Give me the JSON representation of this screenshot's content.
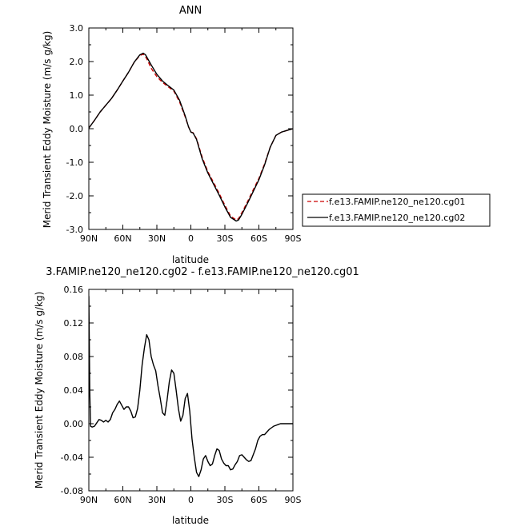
{
  "chart_data": [
    {
      "type": "line",
      "title": "ANN",
      "xlabel": "latitude",
      "ylabel": "Merid Transient Eddy Moisture (m/s g/kg)",
      "xlim": [
        90,
        -90
      ],
      "ylim": [
        -3.0,
        3.0
      ],
      "x_ticks": [
        90,
        60,
        30,
        0,
        -30,
        -60,
        -90
      ],
      "x_tick_labels": [
        "90N",
        "60N",
        "30N",
        "0",
        "30S",
        "60S",
        "90S"
      ],
      "y_ticks": [
        -3.0,
        -2.0,
        -1.0,
        0.0,
        1.0,
        2.0,
        3.0
      ],
      "y_tick_labels": [
        "-3.0",
        "-2.0",
        "-1.0",
        "0.0",
        "1.0",
        "2.0",
        "3.0"
      ],
      "grid": false,
      "legend_position": "right",
      "series": [
        {
          "name": "f.e13.FAMIP.ne120_ne120.cg01",
          "color": "#cc0000",
          "dash": "dashed",
          "x": [
            90,
            85,
            80,
            75,
            70,
            65,
            60,
            55,
            50,
            45,
            42,
            40,
            38,
            35,
            30,
            25,
            20,
            15,
            10,
            5,
            2,
            0,
            -2,
            -5,
            -10,
            -15,
            -20,
            -25,
            -30,
            -35,
            -40,
            -42,
            -45,
            -50,
            -55,
            -60,
            -65,
            -70,
            -75,
            -80,
            -85,
            -90
          ],
          "y": [
            0.02,
            0.25,
            0.5,
            0.7,
            0.9,
            1.15,
            1.42,
            1.68,
            1.98,
            2.18,
            2.22,
            2.15,
            2.02,
            1.8,
            1.55,
            1.38,
            1.25,
            1.12,
            0.8,
            0.35,
            0.05,
            -0.1,
            -0.12,
            -0.3,
            -0.85,
            -1.28,
            -1.6,
            -1.93,
            -2.28,
            -2.6,
            -2.72,
            -2.68,
            -2.5,
            -2.17,
            -1.82,
            -1.48,
            -1.05,
            -0.55,
            -0.2,
            -0.1,
            -0.05,
            0.0
          ]
        },
        {
          "name": "f.e13.FAMIP.ne120_ne120.cg02",
          "color": "#000000",
          "dash": "solid",
          "x": [
            90,
            85,
            80,
            75,
            70,
            65,
            60,
            55,
            50,
            45,
            42,
            40,
            38,
            35,
            30,
            25,
            20,
            15,
            10,
            5,
            2,
            0,
            -2,
            -5,
            -10,
            -15,
            -20,
            -25,
            -30,
            -35,
            -40,
            -42,
            -45,
            -50,
            -55,
            -60,
            -65,
            -70,
            -75,
            -80,
            -85,
            -90
          ],
          "y": [
            0.02,
            0.25,
            0.5,
            0.7,
            0.9,
            1.15,
            1.42,
            1.68,
            1.98,
            2.2,
            2.25,
            2.2,
            2.08,
            1.9,
            1.62,
            1.42,
            1.28,
            1.15,
            0.85,
            0.38,
            0.05,
            -0.1,
            -0.13,
            -0.32,
            -0.9,
            -1.32,
            -1.65,
            -1.98,
            -2.33,
            -2.64,
            -2.75,
            -2.72,
            -2.55,
            -2.22,
            -1.87,
            -1.52,
            -1.08,
            -0.55,
            -0.2,
            -0.1,
            -0.05,
            0.0
          ]
        }
      ]
    },
    {
      "type": "line",
      "title": "3.FAMIP.ne120_ne120.cg02 - f.e13.FAMIP.ne120_ne120.cg01",
      "xlabel": "latitude",
      "ylabel": "Merid Transient Eddy Moisture (m/s g/kg)",
      "xlim": [
        90,
        -90
      ],
      "ylim": [
        -0.08,
        0.16
      ],
      "x_ticks": [
        90,
        60,
        30,
        0,
        -30,
        -60,
        -90
      ],
      "x_tick_labels": [
        "90N",
        "60N",
        "30N",
        "0",
        "30S",
        "60S",
        "90S"
      ],
      "y_ticks": [
        -0.08,
        -0.04,
        0.0,
        0.04,
        0.08,
        0.12,
        0.16
      ],
      "y_tick_labels": [
        "-0.08",
        "-0.04",
        "0.00",
        "0.04",
        "0.08",
        "0.12",
        "0.16"
      ],
      "grid": false,
      "series": [
        {
          "color": "#000000",
          "dash": "solid",
          "x": [
            90,
            89.6,
            89.2,
            88.5,
            87,
            85,
            83,
            81,
            79,
            77,
            75,
            73,
            71,
            69,
            67,
            65,
            63,
            61,
            59,
            57,
            55,
            53,
            51,
            49,
            47,
            45,
            43,
            41,
            39,
            37,
            35,
            33,
            31,
            29,
            27,
            25,
            23,
            21,
            19,
            17,
            15,
            13,
            11,
            9,
            7,
            5,
            3,
            1,
            -1,
            -3,
            -5,
            -7,
            -9,
            -11,
            -13,
            -15,
            -17,
            -19,
            -21,
            -23,
            -25,
            -27,
            -29,
            -31,
            -33,
            -35,
            -37,
            -39,
            -41,
            -43,
            -45,
            -47,
            -49,
            -51,
            -53,
            -55,
            -57,
            -59,
            -61,
            -63,
            -65,
            -67,
            -69,
            -71,
            -73,
            -75,
            -77,
            -79,
            -81,
            -83,
            -85,
            -87,
            -89,
            -90
          ],
          "y": [
            0.152,
            0.098,
            0.04,
            -0.003,
            -0.004,
            -0.003,
            0.001,
            0.005,
            0.004,
            0.002,
            0.004,
            0.002,
            0.005,
            0.013,
            0.017,
            0.023,
            0.027,
            0.022,
            0.017,
            0.02,
            0.02,
            0.015,
            0.007,
            0.008,
            0.018,
            0.04,
            0.07,
            0.09,
            0.106,
            0.1,
            0.08,
            0.07,
            0.063,
            0.045,
            0.03,
            0.013,
            0.01,
            0.028,
            0.05,
            0.064,
            0.06,
            0.04,
            0.018,
            0.003,
            0.01,
            0.03,
            0.036,
            0.015,
            -0.018,
            -0.04,
            -0.058,
            -0.063,
            -0.055,
            -0.042,
            -0.038,
            -0.045,
            -0.05,
            -0.048,
            -0.038,
            -0.03,
            -0.032,
            -0.042,
            -0.047,
            -0.05,
            -0.05,
            -0.055,
            -0.054,
            -0.049,
            -0.045,
            -0.038,
            -0.037,
            -0.04,
            -0.043,
            -0.045,
            -0.044,
            -0.037,
            -0.03,
            -0.02,
            -0.015,
            -0.013,
            -0.013,
            -0.01,
            -0.007,
            -0.005,
            -0.003,
            -0.002,
            -0.001,
            0.0,
            0.0,
            0.0,
            0.0,
            0.0,
            0.0,
            0.0
          ]
        }
      ]
    }
  ]
}
